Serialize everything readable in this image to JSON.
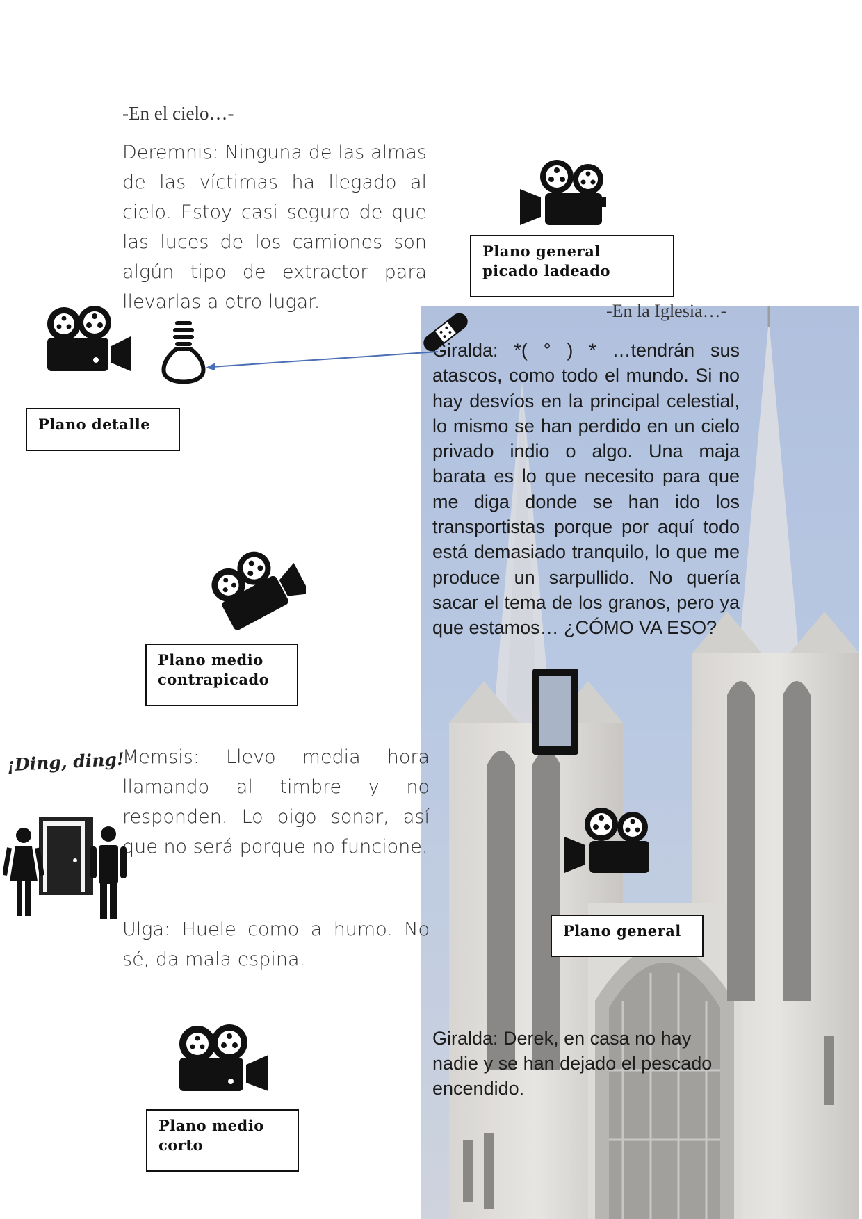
{
  "sky_scene": {
    "heading": "-En el cielo…-",
    "dialogue": "Deremnis: Ninguna de las almas de las víctimas ha llegado al cielo. Estoy casi seguro de que las luces de los camiones son algún tipo de extractor para llevarlas a otro lugar."
  },
  "church_scene": {
    "heading": "-En la Iglesia…-",
    "dialogue_1": "Giralda: *( °   ) * …tendrán sus atascos, como todo el mundo. Si no hay desvíos en la principal celestial, lo mismo se han perdido en un cielo privado indio o algo. Una maja barata es lo que necesito para que me diga donde se han ido los transportistas porque por aquí todo está demasiado tranquilo, lo que me produce un sarpullido. No quería sacar el tema de los granos, pero ya que estamos… ¿CÓMO VA ESO?",
    "dialogue_2": "Giralda: Derek, en casa no hay nadie y se han dejado el pescado encendido."
  },
  "door_scene": {
    "sound": "¡Ding, ding!",
    "dialogue_1": "Memsis: Llevo media hora llamando al timbre y no responden. Lo oigo sonar, así que no será porque no funcione.",
    "dialogue_2": "Ulga: Huele como a humo. No sé, da mala espina."
  },
  "shot_labels": {
    "top_right": "Plano general picado ladeado",
    "detail": "Plano detalle",
    "medium_low": "Plano medio contrapicado",
    "general": "Plano general",
    "medium_short": "Plano medio corto"
  },
  "icons": {
    "camera": "film-camera-icon",
    "bulb": "light-bulb-icon",
    "bandage": "bandage-icon",
    "phone": "smartphone-icon",
    "door": "door-with-people-icon"
  },
  "colors": {
    "arrow": "#4a6fb5",
    "sky": "#a9bcdc",
    "stone": "#d4d2cf"
  }
}
